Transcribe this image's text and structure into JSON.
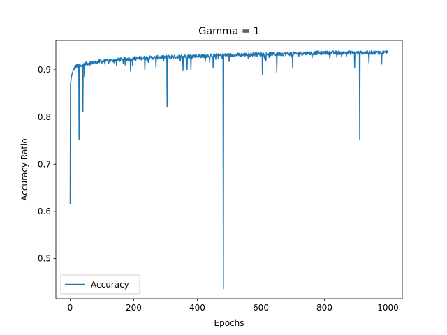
{
  "chart_data": {
    "type": "line",
    "title": "Gamma = 1",
    "xlabel": "Epochs",
    "ylabel": "Accuracy Ratio",
    "xlim": [
      -45,
      1045
    ],
    "ylim": [
      0.415,
      0.962
    ],
    "xticks": [
      0,
      200,
      400,
      600,
      800,
      1000
    ],
    "yticks": [
      0.5,
      0.6,
      0.7,
      0.8,
      0.9
    ],
    "xtick_labels": [
      "0",
      "200",
      "400",
      "600",
      "800",
      "1000"
    ],
    "ytick_labels": [
      "0.5",
      "0.6",
      "0.7",
      "0.8",
      "0.9"
    ],
    "grid": false,
    "legend_position": "lower-left",
    "series": [
      {
        "name": "Accuracy",
        "color": "#1f77b4",
        "x_start": 0,
        "x_step": 1,
        "trend": [
          [
            0,
            0.615
          ],
          [
            1,
            0.87
          ],
          [
            4,
            0.885
          ],
          [
            10,
            0.9
          ],
          [
            20,
            0.908
          ],
          [
            50,
            0.913
          ],
          [
            100,
            0.918
          ],
          [
            200,
            0.924
          ],
          [
            300,
            0.927
          ],
          [
            400,
            0.929
          ],
          [
            500,
            0.931
          ],
          [
            600,
            0.933
          ],
          [
            700,
            0.934
          ],
          [
            800,
            0.936
          ],
          [
            900,
            0.936
          ],
          [
            999,
            0.937
          ]
        ],
        "noise": 0.004,
        "dips": [
          [
            28,
            0.753
          ],
          [
            40,
            0.812
          ],
          [
            45,
            0.885
          ],
          [
            190,
            0.897
          ],
          [
            235,
            0.9
          ],
          [
            270,
            0.905
          ],
          [
            305,
            0.821
          ],
          [
            355,
            0.898
          ],
          [
            368,
            0.9
          ],
          [
            380,
            0.9
          ],
          [
            450,
            0.905
          ],
          [
            482,
            0.436
          ],
          [
            605,
            0.89
          ],
          [
            650,
            0.895
          ],
          [
            700,
            0.905
          ],
          [
            895,
            0.905
          ],
          [
            911,
            0.752
          ],
          [
            940,
            0.915
          ],
          [
            980,
            0.912
          ]
        ]
      }
    ]
  }
}
